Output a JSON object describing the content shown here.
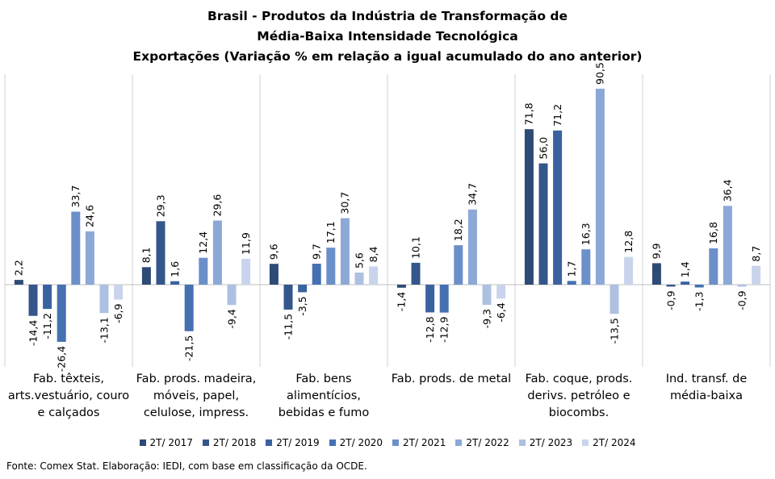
{
  "title_lines": [
    "Brasil - Produtos da Indústria de Transformação de",
    "Média-Baixa Intensidade Tecnológica",
    "Exportações (Variação % em relação a igual acumulado do ano anterior)"
  ],
  "source": "Fonte: Comex Stat. Elaboração: IEDI, com base em classificação da OCDE.",
  "chart_data": {
    "type": "bar",
    "title": "Brasil - Produtos da Indústria de Transformação de Média-Baixa Intensidade Tecnológica — Exportações (Variação % em relação a igual acumulado do ano anterior)",
    "xlabel": "",
    "ylabel": "",
    "ylim": [
      -30,
      100
    ],
    "grid": false,
    "legend_position": "bottom",
    "categories": [
      [
        "Fab. têxteis,",
        "arts.vestuário, couro",
        "e calçados"
      ],
      [
        "Fab. prods. madeira,",
        "móveis, papel,",
        "celulose, impress."
      ],
      [
        "Fab. bens",
        "alimentícios,",
        "bebidas e fumo"
      ],
      [
        "Fab. prods. de metal"
      ],
      [
        "Fab. coque, prods.",
        "derivs. petróleo e",
        "biocombs."
      ],
      [
        "Ind. transf. de",
        "média-baixa"
      ]
    ],
    "series": [
      {
        "name": "2T/ 2017",
        "color": "#2E4A76",
        "values": [
          2.2,
          8.1,
          9.6,
          -1.4,
          71.8,
          9.9
        ],
        "labels": [
          "2,2",
          "8,1",
          "9,6",
          "-1,4",
          "71,8",
          "9,9"
        ]
      },
      {
        "name": "2T/ 2018",
        "color": "#34568A",
        "values": [
          -14.4,
          29.3,
          -11.5,
          10.1,
          56.0,
          -0.9
        ],
        "labels": [
          "-14,4",
          "29,3",
          "-11,5",
          "10,1",
          "56,0",
          "-0,9"
        ]
      },
      {
        "name": "2T/ 2019",
        "color": "#3B62A0",
        "values": [
          -11.2,
          1.6,
          -3.5,
          -12.8,
          71.2,
          1.4
        ],
        "labels": [
          "-11,2",
          "1,6",
          "-3,5",
          "-12,8",
          "71,2",
          "1,4"
        ]
      },
      {
        "name": "2T/ 2020",
        "color": "#4570B2",
        "values": [
          -26.4,
          -21.5,
          9.7,
          -12.9,
          1.7,
          -1.3
        ],
        "labels": [
          "-26,4",
          "-21,5",
          "9,7",
          "-12,9",
          "1,7",
          "-1,3"
        ]
      },
      {
        "name": "2T/ 2021",
        "color": "#6B8FC8",
        "values": [
          33.7,
          12.4,
          17.1,
          18.2,
          16.3,
          16.8
        ],
        "labels": [
          "33,7",
          "12,4",
          "17,1",
          "18,2",
          "16,3",
          "16,8"
        ]
      },
      {
        "name": "2T/ 2022",
        "color": "#8CA8D6",
        "values": [
          24.6,
          29.6,
          30.7,
          34.7,
          90.5,
          36.4
        ],
        "labels": [
          "24,6",
          "29,6",
          "30,7",
          "34,7",
          "90,5",
          "36,4"
        ]
      },
      {
        "name": "2T/ 2023",
        "color": "#AEC0E2",
        "values": [
          -13.1,
          -9.4,
          5.6,
          -9.3,
          -13.5,
          -0.9
        ],
        "labels": [
          "-13,1",
          "-9,4",
          "5,6",
          "-9,3",
          "-13,5",
          "-0,9"
        ]
      },
      {
        "name": "2T/ 2024",
        "color": "#C9D4EC",
        "values": [
          -6.9,
          11.9,
          8.4,
          -6.4,
          12.8,
          8.7
        ],
        "labels": [
          "-6,9",
          "11,9",
          "8,4",
          "-6,4",
          "12,8",
          "8,7"
        ]
      }
    ]
  }
}
